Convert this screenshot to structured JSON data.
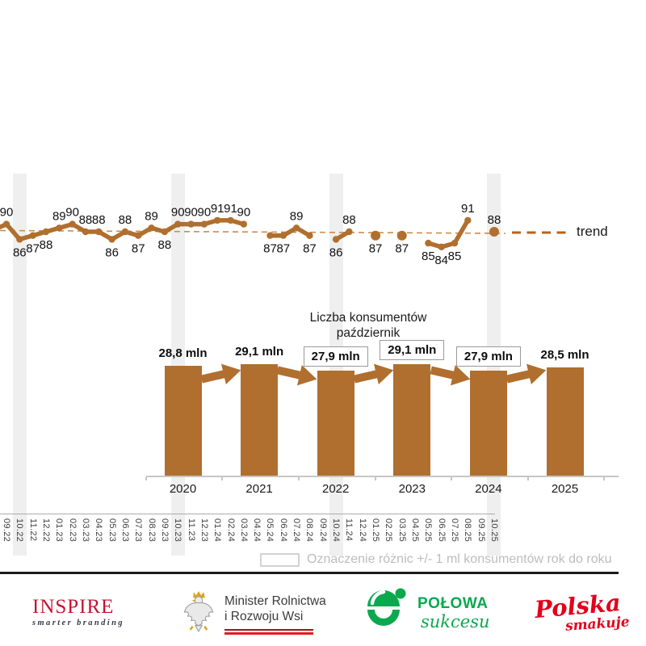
{
  "chart_data": [
    {
      "type": "line",
      "title": "",
      "xlabel": "",
      "ylabel": "",
      "ylim": [
        83,
        92
      ],
      "grid": false,
      "line_color": "#B06F2E",
      "trend": {
        "label": "trend",
        "style": "dashed",
        "color": "#C78240",
        "approx_value": 88
      },
      "highlighted_x": [
        "10.22",
        "10.23",
        "10.24",
        "10.25"
      ],
      "highlight_color": "#efefef",
      "x": [
        "09.22",
        "10.22",
        "11.22",
        "12.22",
        "01.23",
        "02.23",
        "03.23",
        "04.23",
        "05.23",
        "06.23",
        "07.23",
        "08.23",
        "09.23",
        "10.23",
        "11.23",
        "12.23",
        "01.24",
        "02.24",
        "03.24",
        "04.24",
        "05.24",
        "06.24",
        "07.24",
        "08.24",
        "09.24",
        "10.24",
        "11.24",
        "12.24",
        "01.25",
        "02.25",
        "03.25",
        "04.25",
        "05.25",
        "06.25",
        "07.25",
        "08.25",
        "09.25",
        "10.25"
      ],
      "values": [
        90,
        86,
        87,
        88,
        89,
        90,
        88,
        88,
        86,
        88,
        87,
        89,
        88,
        90,
        90,
        90,
        91,
        91,
        90,
        null,
        87,
        87,
        89,
        87,
        null,
        86,
        88,
        null,
        87,
        null,
        87,
        null,
        85,
        84,
        85,
        91,
        null,
        88
      ],
      "label_positions": [
        "above",
        "below",
        "below",
        "below",
        "above",
        "above",
        "above",
        "above",
        "below",
        "above",
        "below",
        "above",
        "below",
        "above",
        "above",
        "above",
        "above",
        "above",
        "above",
        null,
        "below",
        "below",
        "above",
        "below",
        null,
        "below",
        "above",
        null,
        "below",
        null,
        "below",
        null,
        "below",
        "below",
        "below",
        "above",
        null,
        "above"
      ]
    },
    {
      "type": "bar",
      "title": "Liczba konsumentów październik",
      "title_lines": [
        "Liczba konsumentów",
        "październik"
      ],
      "categories": [
        "2020",
        "2021",
        "2022",
        "2023",
        "2024",
        "2025"
      ],
      "values": [
        28.8,
        29.1,
        27.9,
        29.1,
        27.9,
        28.5
      ],
      "value_labels": [
        "28,8 mln",
        "29,1 mln",
        "27,9 mln",
        "29,1 mln",
        "27,9 mln",
        "28,5 mln"
      ],
      "boxed_labels": [
        false,
        false,
        true,
        true,
        true,
        false
      ],
      "arrow_directions": [
        "up",
        "down",
        "up",
        "down",
        "up"
      ],
      "bar_color": "#B06F2E",
      "xlabel": "",
      "ylabel": ""
    }
  ],
  "legend": {
    "note": "Oznaczenie różnic +/- 1 ml konsumentów rok do roku"
  },
  "footer": {
    "logos": [
      {
        "id": "inspire",
        "title": "INSPIRE",
        "subtitle": "smarter branding",
        "color": "#C41432"
      },
      {
        "id": "minister",
        "title": "Minister Rolnictwa",
        "subtitle": "i Rozwoju Wsi",
        "color": "#3b3b3b"
      },
      {
        "id": "polowa-sukcesu",
        "title": "POŁOWA",
        "subtitle": "sukcesu",
        "color": "#0BA94E"
      },
      {
        "id": "polska-smakuje",
        "title": "Polska",
        "subtitle": "smakuje",
        "color": "#E2001A"
      }
    ]
  }
}
